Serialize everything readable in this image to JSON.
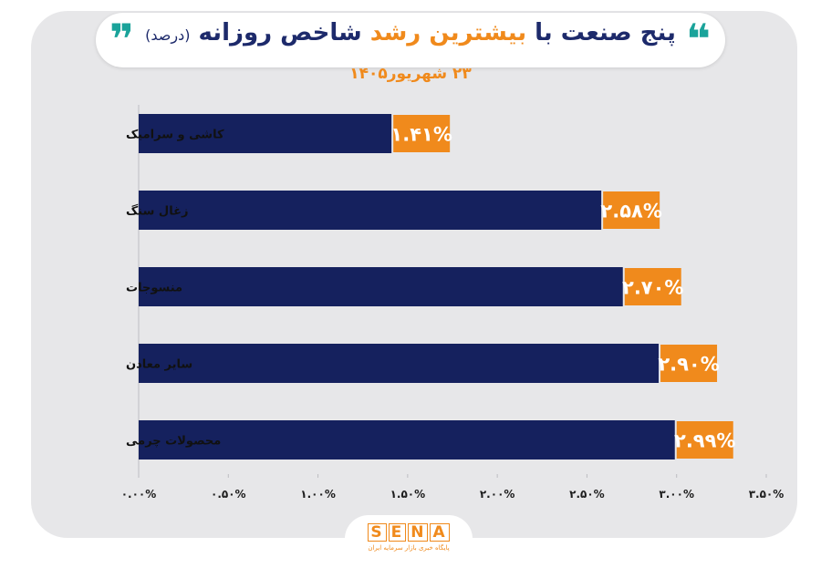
{
  "header": {
    "title_part1": "پنج صنعت با ",
    "title_highlight": "بیشترین رشد",
    "title_part2": " شاخص روزانه ",
    "title_unit": "(درصد)",
    "quote_open": "❞",
    "quote_close": "❝",
    "date": "۲۳ شهریور۱۴۰۵"
  },
  "logo": {
    "letters": [
      "S",
      "E",
      "N",
      "A"
    ],
    "tagline": "پایگاه خبری بازار سرمایه ایران"
  },
  "colors": {
    "bar": "#15215e",
    "label_bg": "#f08a1c",
    "label_text": "#ffffff",
    "accent": "#f08a1c",
    "quote": "#1aa39a"
  },
  "chart_data": {
    "type": "bar",
    "orientation": "horizontal",
    "title": "پنج صنعت با بیشترین رشد شاخص روزانه (درصد)",
    "subtitle": "۲۳ شهریور۱۴۰۵",
    "categories": [
      "کاشی و سرامیک",
      "زغال سنگ",
      "منسوجات",
      "سایر معادن",
      "محصولات چرمی"
    ],
    "values": [
      1.41,
      2.58,
      2.7,
      2.9,
      2.99
    ],
    "data_labels": [
      "۱.۴۱%",
      "۲.۵۸%",
      "۲.۷۰%",
      "۲.۹۰%",
      "۲.۹۹%"
    ],
    "xlim": [
      0,
      3.5
    ],
    "xticks": [
      0,
      0.5,
      1,
      1.5,
      2,
      2.5,
      3,
      3.5
    ],
    "xtick_labels": [
      "۰.۰۰%",
      "۰.۵۰%",
      "۱.۰۰%",
      "۱.۵۰%",
      "۲.۰۰%",
      "۲.۵۰%",
      "۳.۰۰%",
      "۳.۵۰%"
    ],
    "xlabel": "",
    "ylabel": "",
    "grid": false,
    "legend": "none"
  }
}
